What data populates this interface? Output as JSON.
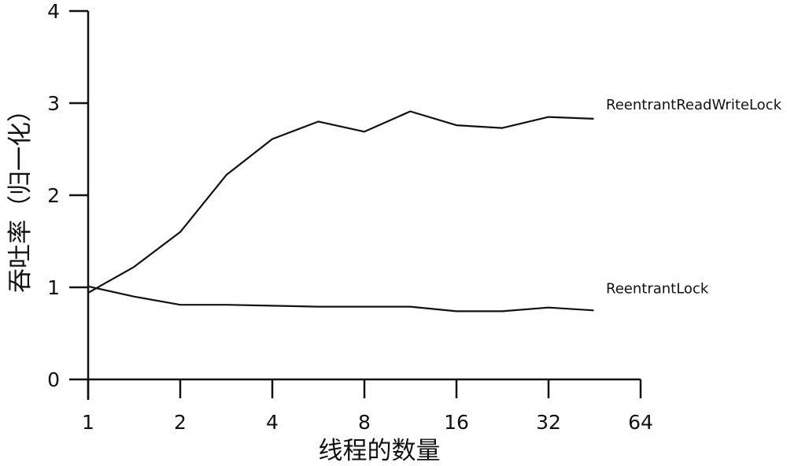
{
  "chart_data": {
    "type": "line",
    "xlabel": "线程的数量",
    "ylabel": "吞吐率（归一化）",
    "x_ticks": [
      "1",
      "2",
      "4",
      "8",
      "16",
      "32",
      "64"
    ],
    "y_ticks": [
      "0",
      "1",
      "2",
      "3",
      "4"
    ],
    "ylim": [
      0,
      4
    ],
    "x_scale": "log2",
    "grid": false,
    "series": [
      {
        "name": "ReentrantReadWriteLock",
        "x": [
          1,
          1.41,
          2,
          2.83,
          4,
          5.66,
          8,
          11.3,
          16,
          22.6,
          32,
          45
        ],
        "values": [
          0.94,
          1.22,
          1.6,
          2.22,
          2.61,
          2.8,
          2.69,
          2.91,
          2.76,
          2.73,
          2.85,
          2.83
        ]
      },
      {
        "name": "ReentrantLock",
        "x": [
          1,
          1.41,
          2,
          2.83,
          4,
          5.66,
          8,
          11.3,
          16,
          22.6,
          32,
          45
        ],
        "values": [
          1.01,
          0.9,
          0.81,
          0.81,
          0.8,
          0.79,
          0.79,
          0.79,
          0.74,
          0.74,
          0.78,
          0.75
        ]
      }
    ]
  }
}
